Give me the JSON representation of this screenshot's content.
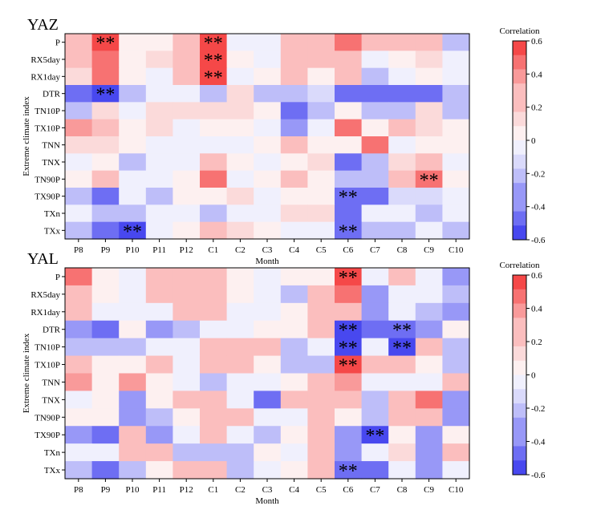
{
  "chart_data": [
    {
      "type": "heatmap",
      "title": "YAZ",
      "xlabel": "Month",
      "ylabel": "Extreme climate index",
      "colorbar_label": "Correlation",
      "x": [
        "P8",
        "P9",
        "P10",
        "P11",
        "P12",
        "C1",
        "C2",
        "C3",
        "C4",
        "C5",
        "C6",
        "C7",
        "C8",
        "C9",
        "C10"
      ],
      "y": [
        "P",
        "RX5day",
        "RX1day",
        "DTR",
        "TN10P",
        "TX10P",
        "TNN",
        "TNX",
        "TN90P",
        "TX90P",
        "TXn",
        "TXx"
      ],
      "values": [
        [
          0.2,
          0.5,
          0.05,
          0.05,
          0.2,
          0.6,
          -0.05,
          -0.05,
          0.3,
          0.2,
          0.4,
          0.2,
          0.2,
          0.3,
          -0.2
        ],
        [
          0.25,
          0.45,
          0.05,
          0.15,
          0.25,
          0.55,
          0.05,
          -0.05,
          0.2,
          0.3,
          0.3,
          -0.05,
          0.05,
          0.15,
          -0.05
        ],
        [
          0.15,
          0.45,
          0.05,
          -0.05,
          0.2,
          0.55,
          -0.05,
          0.05,
          0.2,
          0.05,
          0.25,
          -0.2,
          -0.05,
          0.05,
          -0.05
        ],
        [
          -0.45,
          -0.55,
          -0.2,
          -0.05,
          -0.05,
          -0.25,
          0.15,
          -0.3,
          -0.3,
          -0.1,
          -0.4,
          -0.4,
          -0.4,
          -0.4,
          -0.2
        ],
        [
          -0.2,
          0.1,
          -0.05,
          0.15,
          0.15,
          0.15,
          0.1,
          0.05,
          -0.4,
          -0.25,
          0.05,
          -0.25,
          -0.3,
          0.15,
          -0.2
        ],
        [
          0.35,
          0.3,
          0.05,
          0.15,
          -0.05,
          0.05,
          0.05,
          -0.05,
          -0.35,
          -0.05,
          0.4,
          0.05,
          0.3,
          0.15,
          0.05
        ],
        [
          0.15,
          0.15,
          0.05,
          -0.05,
          -0.05,
          -0.05,
          -0.05,
          0.05,
          0.3,
          0.05,
          0.05,
          0.4,
          -0.05,
          0.05,
          0.05
        ],
        [
          -0.05,
          0.05,
          -0.2,
          -0.05,
          -0.05,
          0.3,
          0.05,
          -0.05,
          0.05,
          0.15,
          -0.45,
          -0.2,
          0.15,
          0.25,
          -0.05
        ],
        [
          0.05,
          0.3,
          -0.05,
          -0.05,
          0.05,
          0.4,
          -0.05,
          0.05,
          0.3,
          0.05,
          -0.25,
          -0.2,
          0.2,
          0.45,
          0.05
        ],
        [
          -0.3,
          -0.45,
          -0.05,
          -0.25,
          0.05,
          0.05,
          0.15,
          -0.05,
          0.05,
          0.05,
          -0.45,
          -0.4,
          -0.1,
          -0.15,
          -0.05
        ],
        [
          -0.05,
          -0.3,
          -0.2,
          -0.05,
          -0.05,
          -0.2,
          -0.05,
          -0.05,
          0.15,
          0.15,
          -0.4,
          -0.05,
          -0.05,
          -0.2,
          -0.05
        ],
        [
          -0.3,
          -0.45,
          -0.55,
          -0.05,
          0.05,
          0.3,
          0.15,
          0.05,
          -0.05,
          -0.05,
          -0.45,
          -0.2,
          -0.2,
          -0.05,
          -0.2
        ]
      ],
      "significant": [
        [
          0,
          1
        ],
        [
          0,
          5
        ],
        [
          1,
          5
        ],
        [
          2,
          5
        ],
        [
          3,
          1
        ],
        [
          8,
          13
        ],
        [
          9,
          10
        ],
        [
          11,
          2
        ],
        [
          11,
          10
        ]
      ],
      "marker": "**",
      "zlim": [
        -0.6,
        0.6
      ],
      "colorbar_ticks": [
        "0.6",
        "0.4",
        "0.2",
        "0",
        "-0.2",
        "-0.4",
        "-0.6"
      ]
    },
    {
      "type": "heatmap",
      "title": "YAL",
      "xlabel": "Month",
      "ylabel": "Extreme climate index",
      "colorbar_label": "Correlation",
      "x": [
        "P8",
        "P9",
        "P10",
        "P11",
        "P12",
        "C1",
        "C2",
        "C3",
        "C4",
        "C5",
        "C6",
        "C7",
        "C8",
        "C9",
        "C10"
      ],
      "y": [
        "P",
        "RX5day",
        "RX1day",
        "DTR",
        "TN10P",
        "TX10P",
        "TNN",
        "TNX",
        "TN90P",
        "TX90P",
        "TXn",
        "TXx"
      ],
      "values": [
        [
          0.4,
          0.05,
          -0.05,
          0.25,
          0.25,
          0.25,
          0.05,
          -0.05,
          0.05,
          0.05,
          0.5,
          -0.05,
          0.2,
          -0.05,
          -0.35
        ],
        [
          0.3,
          0.05,
          -0.05,
          0.25,
          0.3,
          0.2,
          0.05,
          -0.05,
          -0.2,
          0.2,
          0.4,
          -0.35,
          -0.05,
          -0.05,
          -0.3
        ],
        [
          0.2,
          -0.05,
          -0.05,
          -0.05,
          0.2,
          0.2,
          -0.05,
          -0.05,
          0.05,
          0.2,
          0.3,
          -0.35,
          -0.05,
          -0.2,
          -0.35
        ],
        [
          -0.35,
          -0.45,
          0.05,
          -0.35,
          -0.2,
          -0.05,
          -0.05,
          0.05,
          0.05,
          0.2,
          -0.6,
          -0.45,
          -0.45,
          -0.35,
          0.05
        ],
        [
          -0.2,
          -0.2,
          -0.2,
          -0.05,
          -0.05,
          0.2,
          0.3,
          0.2,
          -0.2,
          -0.05,
          -0.6,
          -0.05,
          -0.6,
          0.2,
          -0.3
        ],
        [
          0.2,
          0.05,
          0.05,
          0.2,
          -0.05,
          0.2,
          0.2,
          0.05,
          -0.2,
          -0.2,
          0.5,
          0.2,
          0.2,
          0.05,
          -0.2
        ],
        [
          0.35,
          0.05,
          0.35,
          0.05,
          -0.05,
          -0.2,
          -0.05,
          -0.05,
          0.05,
          0.2,
          0.35,
          -0.05,
          -0.05,
          -0.05,
          0.2
        ],
        [
          -0.05,
          0.05,
          -0.35,
          0.05,
          0.3,
          0.25,
          -0.05,
          -0.45,
          0.2,
          0.2,
          0.2,
          -0.3,
          0.2,
          0.4,
          -0.35
        ],
        [
          0.05,
          0.05,
          -0.35,
          -0.2,
          0.05,
          0.25,
          0.2,
          -0.05,
          -0.05,
          0.3,
          0.05,
          -0.2,
          0.2,
          0.3,
          -0.35
        ],
        [
          -0.35,
          -0.45,
          0.2,
          -0.35,
          -0.05,
          0.2,
          -0.05,
          -0.2,
          0.05,
          0.2,
          -0.35,
          -0.55,
          0.05,
          -0.35,
          0.05
        ],
        [
          -0.05,
          -0.05,
          0.2,
          0.2,
          -0.2,
          -0.2,
          -0.2,
          0.05,
          -0.05,
          0.2,
          -0.35,
          -0.05,
          0.15,
          -0.35,
          0.2
        ],
        [
          -0.2,
          -0.45,
          -0.2,
          0.05,
          0.2,
          0.2,
          -0.2,
          -0.05,
          0.05,
          0.3,
          -0.45,
          -0.45,
          -0.05,
          -0.35,
          -0.05
        ]
      ],
      "significant": [
        [
          0,
          10
        ],
        [
          3,
          10
        ],
        [
          3,
          12
        ],
        [
          4,
          10
        ],
        [
          4,
          12
        ],
        [
          5,
          10
        ],
        [
          9,
          11
        ],
        [
          11,
          10
        ]
      ],
      "marker": "**",
      "zlim": [
        -0.6,
        0.6
      ],
      "colorbar_ticks": [
        "0.6",
        "0.4",
        "0.2",
        "0",
        "-0.2",
        "-0.4",
        "-0.6"
      ]
    }
  ]
}
